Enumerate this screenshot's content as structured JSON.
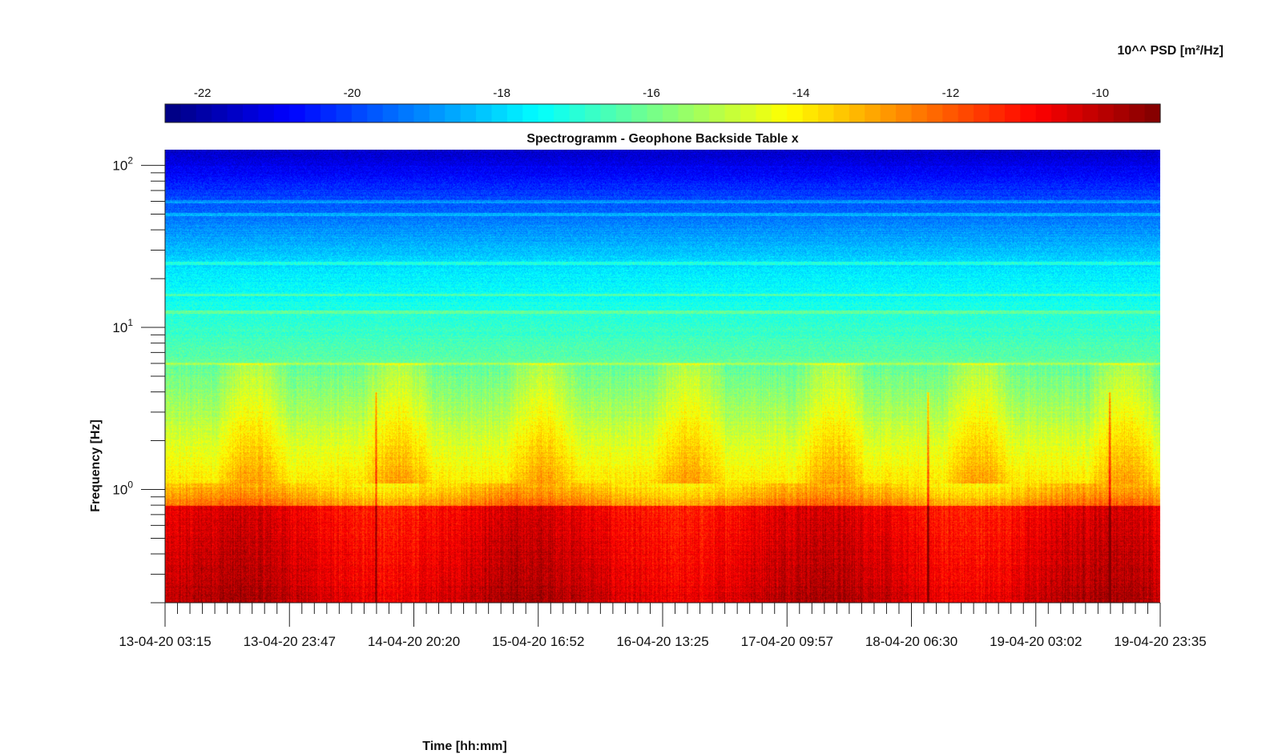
{
  "chart_data": {
    "type": "heatmap",
    "title": "Spectrogramm - Geophone Backside Table x",
    "xlabel": "Time [hh:mm]",
    "ylabel": "Frequency [Hz]",
    "colorbar_label": "10^^ PSD [m²/Hz]",
    "colormap": "jet",
    "x_ticks": [
      "13-04-20 03:15",
      "13-04-20 23:47",
      "14-04-20 20:20",
      "15-04-20 16:52",
      "16-04-20 13:25",
      "17-04-20 09:57",
      "18-04-20 06:30",
      "19-04-20 03:02",
      "19-04-20 23:35"
    ],
    "y_scale": "log",
    "y_range_hz": [
      0.2,
      125
    ],
    "y_ticks": [
      {
        "base": "10",
        "exp": "0",
        "value": 1
      },
      {
        "base": "10",
        "exp": "1",
        "value": 10
      },
      {
        "base": "10",
        "exp": "2",
        "value": 100
      }
    ],
    "color_range": [
      -22.5,
      -9.2
    ],
    "colorbar_ticks": [
      -22,
      -20,
      -18,
      -16,
      -14,
      -12,
      -10
    ],
    "colorbar_location": "top",
    "features": {
      "broadband_band_hz": [
        0.2,
        0.8
      ],
      "band_peak_log_psd": -10.2,
      "persistent_lines_hz": [
        6,
        12.5,
        16,
        25,
        50,
        60
      ],
      "transients_day_fraction": [
        1.45,
        5.25,
        6.5
      ]
    }
  }
}
